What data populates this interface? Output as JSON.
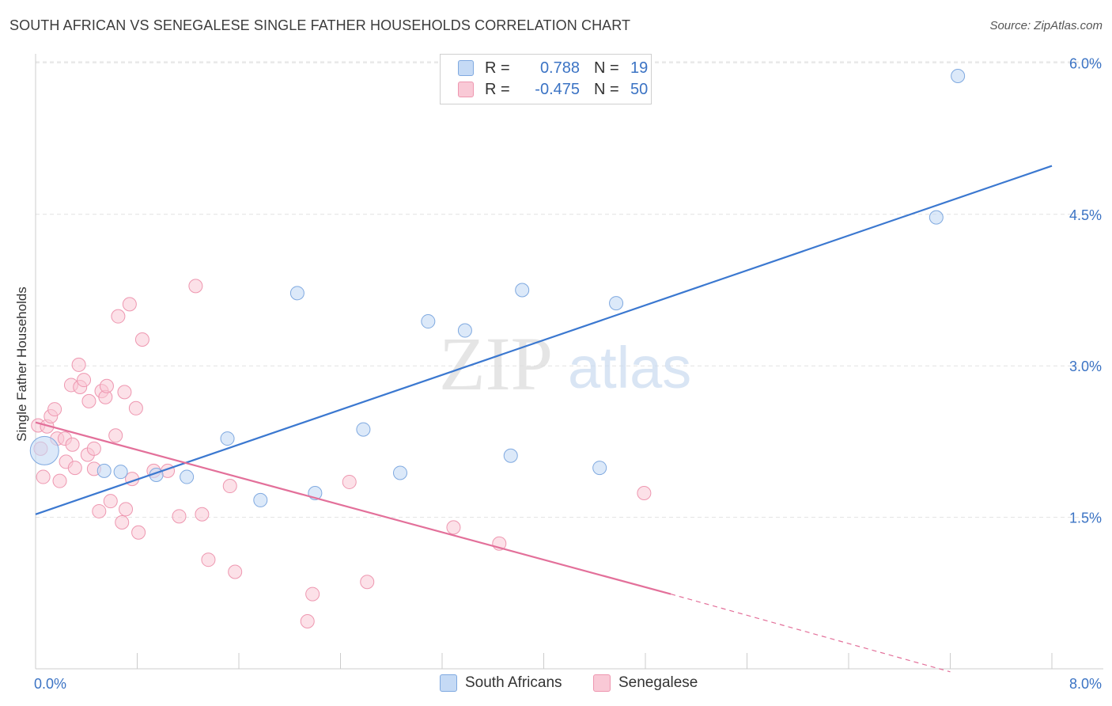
{
  "header": {
    "title": "SOUTH AFRICAN VS SENEGALESE SINGLE FATHER HOUSEHOLDS CORRELATION CHART",
    "source": "Source: ZipAtlas.com"
  },
  "watermark": {
    "zip": "ZIP",
    "atlas": "atlas"
  },
  "legend": {
    "rows": [
      {
        "r_label": "R =",
        "r_value": "0.788",
        "n_label": "N =",
        "n_value": "19",
        "color": "#a8c8f0"
      },
      {
        "r_label": "R =",
        "r_value": "-0.475",
        "n_label": "N = ",
        "n_value": "50",
        "color": "#f6b8c8"
      }
    ]
  },
  "colors": {
    "blue_fill": "#c5daf5",
    "blue_stroke": "#7fa9e0",
    "blue_line": "#3b78d0",
    "pink_fill": "#f9c9d6",
    "pink_stroke": "#ee97b0",
    "pink_line": "#e3709a",
    "tick_label": "#3b73c4"
  },
  "chart_data": {
    "type": "scatter",
    "title": "SOUTH AFRICAN VS SENEGALESE SINGLE FATHER HOUSEHOLDS CORRELATION CHART",
    "xlabel": "",
    "ylabel": "Single Father Households",
    "xlim": [
      0,
      8
    ],
    "ylim": [
      0,
      6.25
    ],
    "x_tick_labels": [
      "0.0%",
      "8.0%"
    ],
    "y_ticks": [
      1.5,
      3.0,
      4.5,
      6.0
    ],
    "y_tick_labels": [
      "1.5%",
      "3.0%",
      "4.5%",
      "6.0%"
    ],
    "grid": true,
    "legend_position": "top-center",
    "series": [
      {
        "name": "South Africans",
        "r": 0.788,
        "n": 19,
        "points": [
          [
            0.07,
            2.16
          ],
          [
            0.54,
            1.96
          ],
          [
            0.67,
            1.95
          ],
          [
            0.95,
            1.92
          ],
          [
            1.19,
            1.9
          ],
          [
            1.51,
            2.28
          ],
          [
            1.77,
            1.67
          ],
          [
            2.06,
            3.72
          ],
          [
            2.2,
            1.74
          ],
          [
            2.58,
            2.37
          ],
          [
            2.87,
            1.94
          ],
          [
            3.09,
            3.44
          ],
          [
            3.38,
            3.35
          ],
          [
            3.74,
            2.11
          ],
          [
            3.83,
            3.75
          ],
          [
            4.44,
            1.99
          ],
          [
            4.57,
            3.62
          ],
          [
            7.09,
            4.47
          ],
          [
            7.26,
            5.87
          ]
        ],
        "trendline": {
          "x": [
            0.0,
            8.0
          ],
          "y": [
            1.53,
            4.98
          ]
        }
      },
      {
        "name": "Senegalese",
        "r": -0.475,
        "n": 50,
        "points": [
          [
            0.02,
            2.41
          ],
          [
            0.04,
            2.18
          ],
          [
            0.06,
            1.9
          ],
          [
            0.09,
            2.4
          ],
          [
            0.12,
            2.5
          ],
          [
            0.15,
            2.57
          ],
          [
            0.17,
            2.28
          ],
          [
            0.19,
            1.86
          ],
          [
            0.23,
            2.28
          ],
          [
            0.24,
            2.05
          ],
          [
            0.28,
            2.81
          ],
          [
            0.29,
            2.22
          ],
          [
            0.31,
            1.99
          ],
          [
            0.34,
            3.01
          ],
          [
            0.35,
            2.79
          ],
          [
            0.38,
            2.86
          ],
          [
            0.41,
            2.12
          ],
          [
            0.42,
            2.65
          ],
          [
            0.46,
            1.98
          ],
          [
            0.46,
            2.18
          ],
          [
            0.5,
            1.56
          ],
          [
            0.52,
            2.75
          ],
          [
            0.55,
            2.69
          ],
          [
            0.56,
            2.8
          ],
          [
            0.59,
            1.66
          ],
          [
            0.63,
            2.31
          ],
          [
            0.65,
            3.49
          ],
          [
            0.68,
            1.45
          ],
          [
            0.7,
            2.74
          ],
          [
            0.71,
            1.58
          ],
          [
            0.74,
            3.61
          ],
          [
            0.76,
            1.88
          ],
          [
            0.79,
            2.58
          ],
          [
            0.81,
            1.35
          ],
          [
            0.84,
            3.26
          ],
          [
            0.93,
            1.96
          ],
          [
            1.04,
            1.96
          ],
          [
            1.13,
            1.51
          ],
          [
            1.26,
            3.79
          ],
          [
            1.31,
            1.53
          ],
          [
            1.36,
            1.08
          ],
          [
            1.53,
            1.81
          ],
          [
            1.57,
            0.96
          ],
          [
            2.14,
            0.47
          ],
          [
            2.18,
            0.74
          ],
          [
            2.47,
            1.85
          ],
          [
            2.61,
            0.86
          ],
          [
            3.29,
            1.4
          ],
          [
            3.65,
            1.24
          ],
          [
            4.79,
            1.74
          ]
        ],
        "trendline": {
          "x": [
            0.0,
            5.0
          ],
          "y": [
            2.44,
            0.74
          ]
        },
        "trendline_extension": {
          "x": [
            5.0,
            7.2
          ],
          "y": [
            0.74,
            -0.03
          ]
        }
      }
    ]
  },
  "bottom_legend": {
    "items": [
      {
        "label": "South Africans"
      },
      {
        "label": "Senegalese"
      }
    ]
  }
}
